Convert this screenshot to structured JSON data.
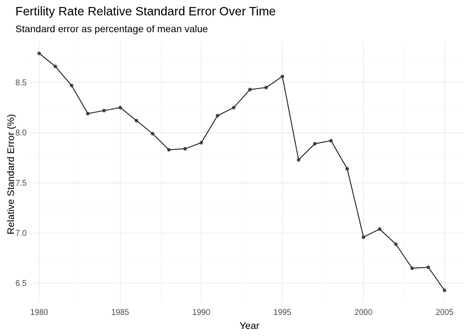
{
  "chart_data": {
    "type": "line",
    "title": "Fertility Rate Relative Standard Error Over Time",
    "subtitle": "Standard error as percentage of mean value",
    "xlabel": "Year",
    "ylabel": "Relative Standard Error (%)",
    "xlim": [
      1979.4,
      2006.2
    ],
    "ylim": [
      6.31,
      8.91
    ],
    "x_ticks": [
      1980,
      1985,
      1990,
      1995,
      2000,
      2005
    ],
    "y_ticks": [
      6.5,
      7.0,
      7.5,
      8.0,
      8.5
    ],
    "y_tick_labels": [
      "6.5",
      "7.0",
      "7.5",
      "8.0",
      "8.5"
    ],
    "grid": true,
    "colors": {
      "line": "#000000",
      "point": "#333333",
      "grid_major": "#ebebeb",
      "grid_minor": "#f5f5f5"
    },
    "series": [
      {
        "x": [
          1980,
          1981,
          1982,
          1983,
          1984,
          1985,
          1986,
          1987,
          1988,
          1989,
          1990,
          1991,
          1992,
          1993,
          1994,
          1995,
          1996,
          1997,
          1998,
          1999,
          2000,
          2001,
          2002,
          2003,
          2004,
          2005
        ],
        "values": [
          8.79,
          8.66,
          8.47,
          8.19,
          8.22,
          8.25,
          8.12,
          7.99,
          7.83,
          7.84,
          7.9,
          8.17,
          8.25,
          8.43,
          8.45,
          8.56,
          7.73,
          7.89,
          7.92,
          7.64,
          6.96,
          7.04,
          6.89,
          6.65,
          6.66,
          6.43
        ]
      }
    ]
  }
}
